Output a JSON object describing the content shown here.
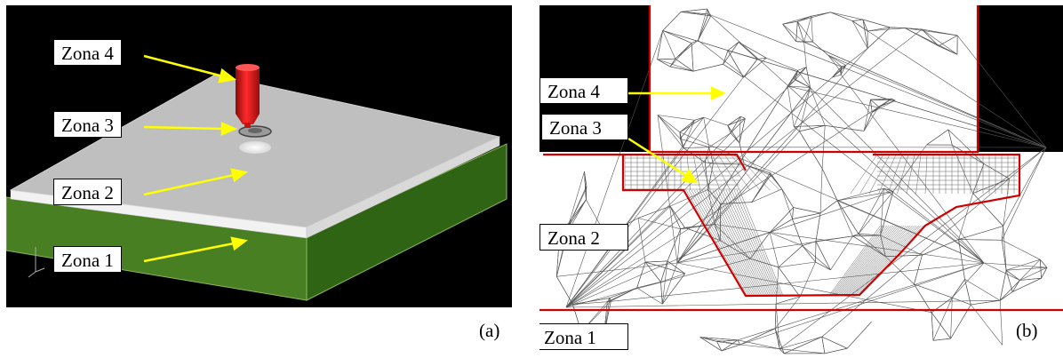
{
  "panel_a": {
    "labels": [
      "Zona 4",
      "Zona 3",
      "Zona 2",
      "Zona 1"
    ],
    "caption": "(a)"
  },
  "panel_b": {
    "labels": [
      "Zona 4",
      "Zona 3",
      "Zona 2",
      "Zona 1"
    ],
    "caption": "(b)"
  },
  "colors": {
    "arrow": "#ffff00",
    "substrate": "#3f7d1e",
    "plate": "#bfbfbf",
    "tool": "#e8111a",
    "boundary": "#d00000",
    "mesh": "#555555"
  }
}
